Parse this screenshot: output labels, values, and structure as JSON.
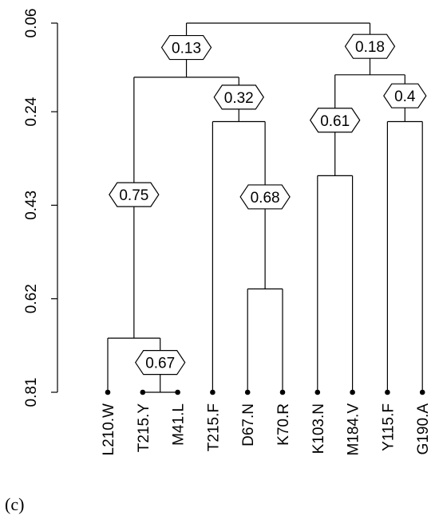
{
  "chart_data": {
    "type": "dendrogram",
    "y_axis": {
      "ticks": [
        "0.06",
        "0.24",
        "0.43",
        "0.62",
        "0.81"
      ],
      "range": [
        0.06,
        0.81
      ],
      "inverted": true
    },
    "leaves": [
      "L210.W",
      "T215.Y",
      "M41.L",
      "T215.F",
      "D67.N",
      "K70.R",
      "K103.N",
      "M184.V",
      "Y115.F",
      "G190.A"
    ],
    "merges": [
      {
        "left": "T215.Y",
        "right": "M41.L",
        "height": 0.81,
        "label": "0.67"
      },
      {
        "left": "L210.W",
        "right": "node1",
        "height": 0.7,
        "label": "0.75"
      },
      {
        "left": "D67.N",
        "right": "K70.R",
        "height": 0.6,
        "label": "0.68"
      },
      {
        "left": "T215.F",
        "right": "node3",
        "height": 0.26,
        "label": "0.32"
      },
      {
        "left": "node2",
        "right": "node4",
        "height": 0.17,
        "label": "0.13"
      },
      {
        "left": "K103.N",
        "right": "M184.V",
        "height": 0.37,
        "label": "0.61"
      },
      {
        "left": "Y115.F",
        "right": "G190.A",
        "height": 0.26,
        "label": "0.4"
      },
      {
        "left": "node6",
        "right": "node7",
        "height": 0.165,
        "label": "0.18"
      },
      {
        "left": "node5",
        "right": "node8",
        "height": 0.06,
        "label": ""
      }
    ]
  },
  "panel_label": "(c)"
}
